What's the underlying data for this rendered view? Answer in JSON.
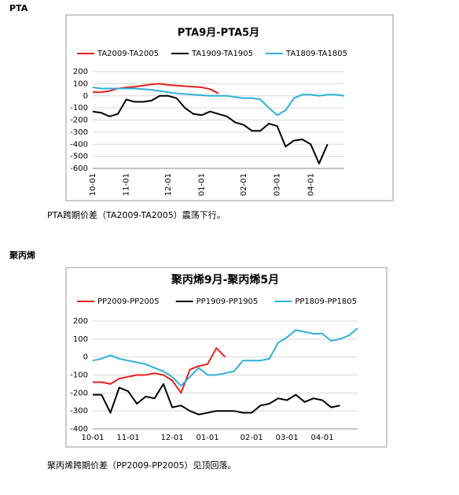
{
  "heading1": "PTA",
  "caption1": "PTA跨期价差（TA2009-TA2005）震荡下行。",
  "heading2": "聚丙烯",
  "caption2": "聚丙烯跨期价差（PP2009-PP2005）见顶回落。",
  "chart_data": [
    {
      "type": "line",
      "title": "PTA9月-PTA5月",
      "categories": [
        "10-01",
        null,
        null,
        null,
        "11-01",
        null,
        null,
        null,
        null,
        "12-01",
        null,
        null,
        null,
        "01-01",
        null,
        null,
        null,
        null,
        "02-01",
        null,
        null,
        null,
        "03-01",
        null,
        null,
        null,
        "04-01",
        null,
        null,
        null,
        null
      ],
      "ylim": [
        -600,
        200
      ],
      "yticks": [
        -600,
        -500,
        -400,
        -300,
        -200,
        -100,
        0,
        100,
        200
      ],
      "grid": true,
      "legend": "top",
      "series": [
        {
          "name": "TA2009-TA2005",
          "color": "#e8221c",
          "values": [
            30,
            30,
            40,
            60,
            70,
            75,
            85,
            95,
            100,
            90,
            85,
            80,
            75,
            70,
            55,
            20,
            null,
            null,
            null,
            null,
            null,
            null,
            null,
            null,
            null,
            null,
            null,
            null,
            null,
            null,
            null
          ]
        },
        {
          "name": "TA1909-TA1905",
          "color": "#000000",
          "values": [
            -130,
            -140,
            -170,
            -150,
            -30,
            -50,
            -50,
            -40,
            0,
            0,
            -20,
            -100,
            -150,
            -160,
            -130,
            -150,
            -170,
            -220,
            -240,
            -290,
            -290,
            -230,
            -250,
            -420,
            -370,
            -360,
            -400,
            -560,
            -400,
            null,
            null
          ]
        },
        {
          "name": "TA1809-TA1805",
          "color": "#2fb0d8",
          "values": [
            70,
            60,
            60,
            60,
            60,
            60,
            55,
            50,
            40,
            30,
            20,
            15,
            10,
            5,
            0,
            0,
            0,
            -10,
            -20,
            -20,
            -30,
            -100,
            -160,
            -120,
            -20,
            10,
            10,
            0,
            10,
            10,
            0
          ]
        }
      ]
    },
    {
      "type": "line",
      "title": "聚丙烯9月-聚丙烯5月",
      "categories": [
        "10-01",
        null,
        null,
        null,
        "11-01",
        null,
        null,
        null,
        null,
        "12-01",
        null,
        null,
        null,
        "01-01",
        null,
        null,
        null,
        null,
        "02-01",
        null,
        null,
        null,
        "03-01",
        null,
        null,
        null,
        "04-01",
        null,
        null,
        null,
        null
      ],
      "ylim": [
        -400,
        200
      ],
      "yticks": [
        -400,
        -300,
        -200,
        -100,
        0,
        100,
        200
      ],
      "grid": true,
      "legend": "top",
      "series": [
        {
          "name": "PP2009-PP2005",
          "color": "#e8221c",
          "values": [
            -140,
            -140,
            -150,
            -120,
            -110,
            -100,
            -100,
            -90,
            -100,
            -130,
            -200,
            -70,
            -50,
            -40,
            50,
            0,
            null,
            null,
            null,
            null,
            null,
            null,
            null,
            null,
            null,
            null,
            null,
            null,
            null,
            null,
            null
          ]
        },
        {
          "name": "PP1909-PP1905",
          "color": "#000000",
          "values": [
            -210,
            -210,
            -310,
            -170,
            -190,
            -260,
            -220,
            -230,
            -150,
            -280,
            -270,
            -300,
            -320,
            -310,
            -300,
            -300,
            -300,
            -310,
            -310,
            -270,
            -260,
            -230,
            -240,
            -210,
            -250,
            -230,
            -240,
            -280,
            -270,
            null,
            null
          ]
        },
        {
          "name": "PP1809-PP1805",
          "color": "#2fb0d8",
          "values": [
            -20,
            -10,
            10,
            -10,
            -20,
            -30,
            -40,
            -60,
            -80,
            -110,
            -160,
            -110,
            -60,
            -100,
            -100,
            -90,
            -80,
            -20,
            -20,
            -20,
            -10,
            80,
            110,
            150,
            140,
            130,
            130,
            90,
            100,
            120,
            160
          ]
        }
      ]
    }
  ]
}
